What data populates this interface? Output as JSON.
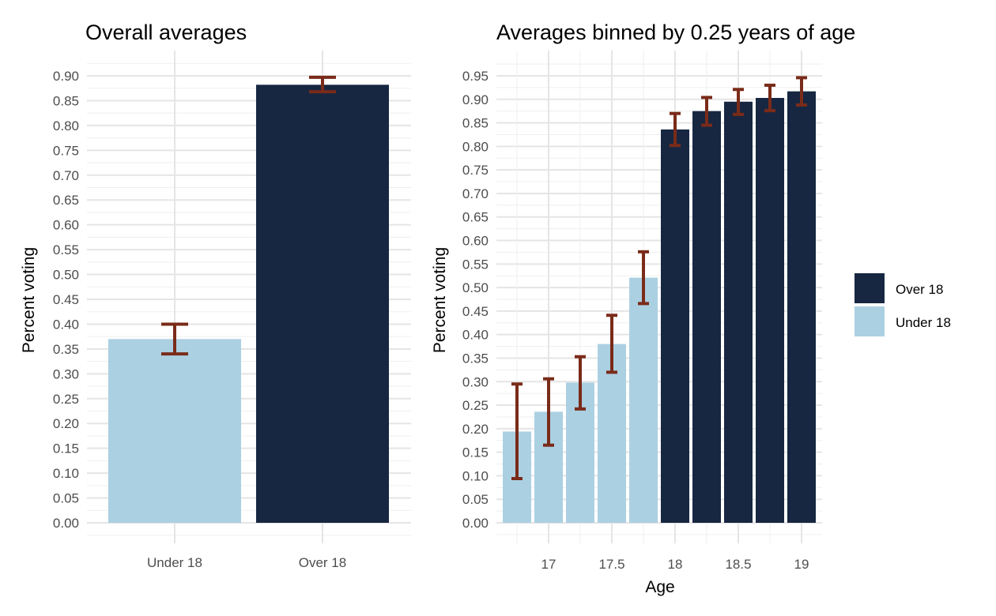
{
  "colors": {
    "over_18": "#172741",
    "under_18": "#abd0e2",
    "error_bar": "#7a2b19"
  },
  "chart_data": [
    {
      "type": "bar",
      "title": "Overall averages",
      "xlabel": "",
      "ylabel": "Percent voting",
      "ylim": [
        0,
        0.9
      ],
      "y_ticks": [
        "0.00",
        "0.05",
        "0.10",
        "0.15",
        "0.20",
        "0.25",
        "0.30",
        "0.35",
        "0.40",
        "0.45",
        "0.50",
        "0.55",
        "0.60",
        "0.65",
        "0.70",
        "0.75",
        "0.80",
        "0.85",
        "0.90"
      ],
      "grid": true,
      "categories": [
        "Under 18",
        "Over 18"
      ],
      "values": [
        0.37,
        0.882
      ],
      "error_low": [
        0.34,
        0.868
      ],
      "error_high": [
        0.4,
        0.897
      ],
      "groups": [
        "Under 18",
        "Over 18"
      ]
    },
    {
      "type": "bar",
      "title": "Averages binned by 0.25 years of age",
      "xlabel": "Age",
      "ylabel": "Percent voting",
      "ylim": [
        0,
        0.95
      ],
      "y_ticks": [
        "0.00",
        "0.05",
        "0.10",
        "0.15",
        "0.20",
        "0.25",
        "0.30",
        "0.35",
        "0.40",
        "0.45",
        "0.50",
        "0.55",
        "0.60",
        "0.65",
        "0.70",
        "0.75",
        "0.80",
        "0.85",
        "0.90",
        "0.95"
      ],
      "x_ticks": [
        "17",
        "17.5",
        "18",
        "18.5",
        "19"
      ],
      "grid": true,
      "x": [
        16.75,
        17.0,
        17.25,
        17.5,
        17.75,
        18.0,
        18.25,
        18.5,
        18.75,
        19.0
      ],
      "values": [
        0.194,
        0.236,
        0.298,
        0.38,
        0.521,
        0.836,
        0.875,
        0.895,
        0.903,
        0.917
      ],
      "error_low": [
        0.094,
        0.165,
        0.242,
        0.32,
        0.466,
        0.802,
        0.845,
        0.868,
        0.876,
        0.888
      ],
      "error_high": [
        0.295,
        0.306,
        0.353,
        0.441,
        0.576,
        0.87,
        0.904,
        0.921,
        0.93,
        0.946
      ],
      "groups": [
        "Under 18",
        "Under 18",
        "Under 18",
        "Under 18",
        "Under 18",
        "Over 18",
        "Over 18",
        "Over 18",
        "Over 18",
        "Over 18"
      ],
      "legend": {
        "placement": "right",
        "entries": [
          "Over 18",
          "Under 18"
        ]
      }
    }
  ]
}
